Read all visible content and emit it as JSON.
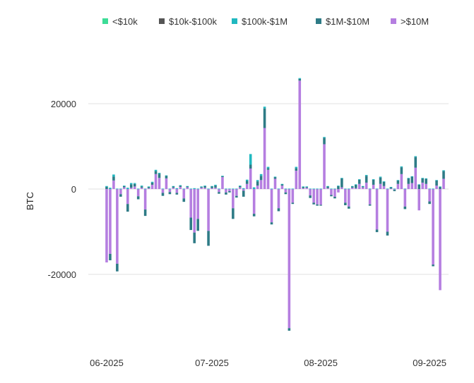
{
  "chart_data": {
    "type": "bar",
    "stacked": true,
    "ylabel": "BTC",
    "xlabel": "",
    "title": "",
    "ylim": [
      -37000,
      29000
    ],
    "yticks": [
      -20000,
      0,
      20000
    ],
    "xticks": [
      {
        "label": "06-2025",
        "index": 1
      },
      {
        "label": "07-2025",
        "index": 31
      },
      {
        "label": "08-2025",
        "index": 62
      },
      {
        "label": "09-2025",
        "index": 93
      }
    ],
    "grid": true,
    "legend_position": "top",
    "series": [
      {
        "name": "<$10k",
        "color": "#3ddc97"
      },
      {
        "name": "$10k-$100k",
        "color": "#555555"
      },
      {
        "name": "$100k-$1M",
        "color": "#20b8c0"
      },
      {
        "name": "$1M-$10M",
        "color": "#2e7b86"
      },
      {
        "name": ">$10M",
        "color": "#b57ee0"
      }
    ],
    "days": [
      [
        0,
        0,
        0,
        0,
        0
      ],
      [
        0,
        0,
        200,
        500,
        -17200
      ],
      [
        0,
        0,
        300,
        -1500,
        -15200
      ],
      [
        0,
        0,
        500,
        900,
        2000
      ],
      [
        0,
        0,
        100,
        -1800,
        -17500
      ],
      [
        0,
        0,
        100,
        -600,
        -1200
      ],
      [
        0,
        0,
        100,
        300,
        400
      ],
      [
        0,
        0,
        300,
        -1800,
        -3500
      ],
      [
        0,
        0,
        300,
        800,
        300
      ],
      [
        0,
        0,
        200,
        600,
        600
      ],
      [
        0,
        0,
        100,
        -700,
        -1700
      ],
      [
        0,
        0,
        200,
        300,
        300
      ],
      [
        0,
        0,
        100,
        -1500,
        -4800
      ],
      [
        0,
        0,
        100,
        300,
        200
      ],
      [
        0,
        0,
        200,
        500,
        1000
      ],
      [
        0,
        0,
        300,
        700,
        3500
      ],
      [
        0,
        0,
        200,
        1000,
        2600
      ],
      [
        0,
        0,
        100,
        -700,
        -900
      ],
      [
        0,
        0,
        100,
        600,
        2500
      ],
      [
        0,
        0,
        100,
        -500,
        -700
      ],
      [
        0,
        0,
        100,
        300,
        300
      ],
      [
        0,
        0,
        200,
        -400,
        -900
      ],
      [
        0,
        0,
        100,
        300,
        500
      ],
      [
        0,
        0,
        100,
        -800,
        -2200
      ],
      [
        0,
        0,
        100,
        200,
        400
      ],
      [
        0,
        0,
        100,
        -2900,
        -6700
      ],
      [
        0,
        0,
        200,
        -2500,
        -10200
      ],
      [
        0,
        0,
        100,
        -2800,
        -7000
      ],
      [
        0,
        0,
        100,
        200,
        300
      ],
      [
        0,
        0,
        100,
        400,
        300
      ],
      [
        0,
        0,
        100,
        -3500,
        -9800
      ],
      [
        0,
        0,
        100,
        400,
        200
      ],
      [
        0,
        0,
        200,
        500,
        300
      ],
      [
        0,
        0,
        100,
        -400,
        -700
      ],
      [
        0,
        0,
        100,
        200,
        2800
      ],
      [
        0,
        0,
        100,
        -500,
        -800
      ],
      [
        0,
        0,
        100,
        -300,
        -500
      ],
      [
        0,
        0,
        100,
        -2500,
        -4500
      ],
      [
        0,
        0,
        100,
        -400,
        -1600
      ],
      [
        0,
        0,
        100,
        300,
        400
      ],
      [
        0,
        0,
        200,
        -1400,
        -400
      ],
      [
        0,
        0,
        300,
        700,
        1200
      ],
      [
        0,
        0,
        2500,
        900,
        4800
      ],
      [
        0,
        0,
        400,
        -600,
        -5800
      ],
      [
        0,
        0,
        300,
        1000,
        800
      ],
      [
        0,
        0,
        400,
        1000,
        2100
      ],
      [
        0,
        0,
        400,
        4600,
        14300
      ],
      [
        0,
        0,
        300,
        400,
        4500
      ],
      [
        0,
        0,
        100,
        -500,
        -7800
      ],
      [
        0,
        0,
        100,
        400,
        2400
      ],
      [
        0,
        0,
        100,
        -700,
        -4500
      ],
      [
        0,
        0,
        100,
        300,
        800
      ],
      [
        0,
        0,
        100,
        -400,
        -800
      ],
      [
        0,
        0,
        100,
        -600,
        -32600
      ],
      [
        0,
        0,
        100,
        -300,
        -3200
      ],
      [
        0,
        0,
        300,
        600,
        4300
      ],
      [
        0,
        0,
        200,
        400,
        25400
      ],
      [
        0,
        0,
        100,
        300,
        200
      ],
      [
        0,
        0,
        100,
        200,
        300
      ],
      [
        0,
        0,
        100,
        -600,
        -1500
      ],
      [
        0,
        0,
        100,
        -400,
        -3200
      ],
      [
        0,
        0,
        100,
        -300,
        -3600
      ],
      [
        0,
        0,
        100,
        -200,
        -3700
      ],
      [
        0,
        0,
        200,
        1500,
        10500
      ],
      [
        0,
        0,
        100,
        400,
        200
      ],
      [
        0,
        0,
        100,
        -300,
        -1400
      ],
      [
        0,
        0,
        100,
        -400,
        -1800
      ],
      [
        0,
        0,
        100,
        700,
        -800
      ],
      [
        0,
        0,
        100,
        2100,
        400
      ],
      [
        0,
        0,
        100,
        -600,
        -3200
      ],
      [
        0,
        0,
        100,
        -500,
        -4100
      ],
      [
        0,
        0,
        100,
        300,
        300
      ],
      [
        0,
        0,
        100,
        800,
        200
      ],
      [
        0,
        0,
        100,
        1000,
        1200
      ],
      [
        0,
        0,
        100,
        200,
        400
      ],
      [
        0,
        0,
        200,
        1600,
        1500
      ],
      [
        0,
        0,
        100,
        -300,
        -3600
      ],
      [
        0,
        0,
        100,
        1200,
        1000
      ],
      [
        0,
        0,
        100,
        -600,
        -9500
      ],
      [
        0,
        0,
        200,
        1500,
        1200
      ],
      [
        0,
        0,
        100,
        1000,
        700
      ],
      [
        0,
        0,
        100,
        -900,
        -10000
      ],
      [
        0,
        0,
        100,
        300,
        100
      ],
      [
        0,
        0,
        100,
        -300,
        -200
      ],
      [
        0,
        0,
        100,
        800,
        1200
      ],
      [
        0,
        0,
        200,
        1600,
        3500
      ],
      [
        0,
        0,
        100,
        -600,
        -4100
      ],
      [
        0,
        0,
        100,
        1300,
        1200
      ],
      [
        0,
        0,
        100,
        1500,
        1400
      ],
      [
        0,
        0,
        200,
        2500,
        5000
      ],
      [
        0,
        0,
        100,
        1000,
        -5000
      ],
      [
        0,
        0,
        100,
        1000,
        1500
      ],
      [
        0,
        0,
        100,
        1200,
        1200
      ],
      [
        0,
        0,
        100,
        -600,
        -2900
      ],
      [
        0,
        0,
        100,
        -400,
        -17700
      ],
      [
        0,
        0,
        100,
        1200,
        800
      ],
      [
        0,
        0,
        100,
        500,
        -23700
      ],
      [
        0,
        0,
        200,
        1800,
        2400
      ]
    ]
  }
}
